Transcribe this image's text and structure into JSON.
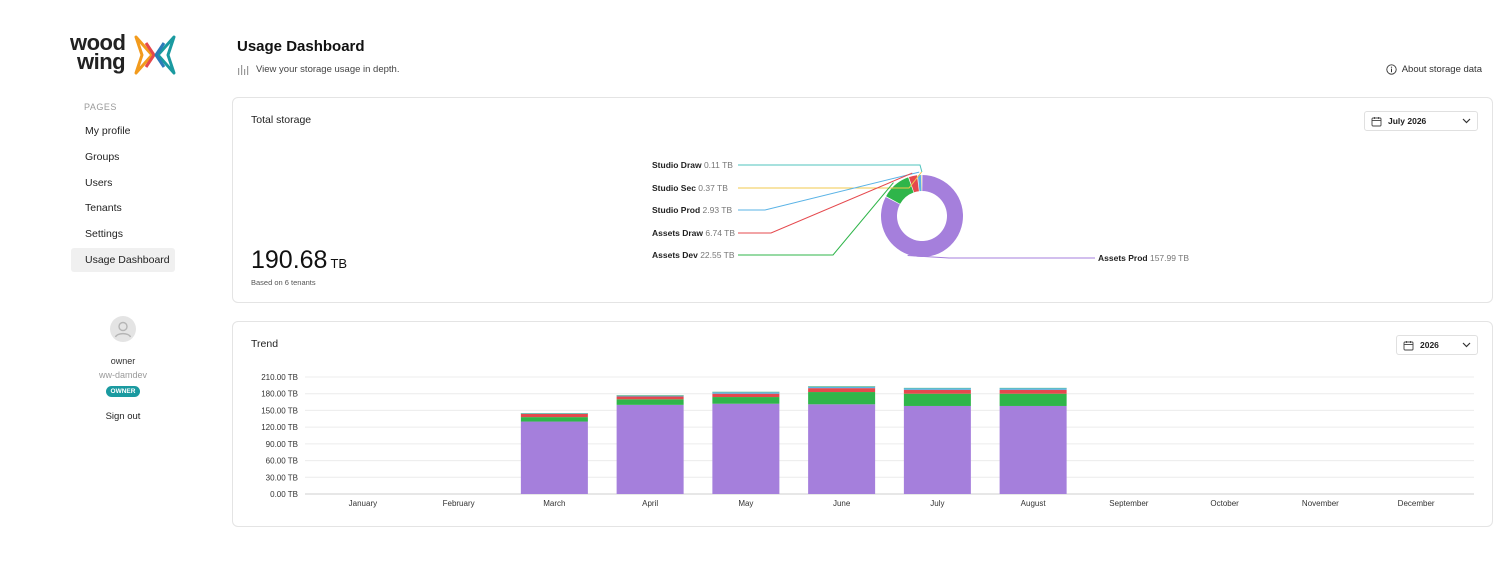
{
  "brand": {
    "line1": "wood",
    "line2": "wing"
  },
  "sidebar": {
    "section_label": "PAGES",
    "items": [
      {
        "label": "My profile"
      },
      {
        "label": "Groups"
      },
      {
        "label": "Users"
      },
      {
        "label": "Tenants"
      },
      {
        "label": "Settings"
      },
      {
        "label": "Usage Dashboard",
        "active": true
      }
    ],
    "user": {
      "name": "owner",
      "tenant": "ww-damdev",
      "role_badge": "OWNER",
      "sign_out": "Sign out"
    }
  },
  "header": {
    "title": "Usage Dashboard",
    "subtitle": "View your storage usage in depth.",
    "about_link": "About storage data"
  },
  "total_storage": {
    "title": "Total storage",
    "month_select": "July 2026",
    "total_value": "190.68",
    "total_unit": "TB",
    "note": "Based on 6 tenants"
  },
  "trend": {
    "title": "Trend",
    "year_select": "2026"
  },
  "colors": {
    "assets_prod": "#a57fdc",
    "assets_dev": "#2fb54a",
    "assets_draw": "#e5484d",
    "studio_prod": "#5ab3e6",
    "studio_sec": "#f2c94c",
    "studio_draw": "#4fc3bd"
  },
  "chart_data": [
    {
      "type": "pie",
      "variant": "donut",
      "slices": [
        {
          "label": "Studio Draw",
          "value": 0.11,
          "value_text": "0.11",
          "unit": "TB",
          "color": "#4fc3bd"
        },
        {
          "label": "Studio Sec",
          "value": 0.37,
          "value_text": "0.37",
          "unit": "TB",
          "color": "#f2c94c"
        },
        {
          "label": "Studio Prod",
          "value": 2.93,
          "value_text": "2.93",
          "unit": "TB",
          "color": "#5ab3e6"
        },
        {
          "label": "Assets Draw",
          "value": 6.74,
          "value_text": "6.74",
          "unit": "TB",
          "color": "#e5484d"
        },
        {
          "label": "Assets Dev",
          "value": 22.55,
          "value_text": "22.55",
          "unit": "TB",
          "color": "#2fb54a"
        },
        {
          "label": "Assets Prod",
          "value": 157.99,
          "value_text": "157.99",
          "unit": "TB",
          "color": "#a57fdc"
        }
      ]
    },
    {
      "type": "bar",
      "stacked": true,
      "categories": [
        "January",
        "February",
        "March",
        "April",
        "May",
        "June",
        "July",
        "August",
        "September",
        "October",
        "November",
        "December"
      ],
      "y_ticks": [
        "0.00 TB",
        "30.00 TB",
        "60.00 TB",
        "90.00 TB",
        "120.00 TB",
        "150.00 TB",
        "180.00 TB",
        "210.00 TB"
      ],
      "ylim": [
        0,
        210
      ],
      "grid": true,
      "series": [
        {
          "name": "Assets Prod",
          "color": "#a57fdc",
          "values": [
            0,
            0,
            130,
            160,
            162,
            161,
            158,
            158,
            0,
            0,
            0,
            0
          ]
        },
        {
          "name": "Assets Dev",
          "color": "#2fb54a",
          "values": [
            0,
            0,
            8,
            10,
            12,
            22,
            22,
            22,
            0,
            0,
            0,
            0
          ]
        },
        {
          "name": "Assets Draw",
          "color": "#e5484d",
          "values": [
            0,
            0,
            6,
            5,
            6,
            7,
            7,
            7,
            0,
            0,
            0,
            0
          ]
        },
        {
          "name": "Studio Prod",
          "color": "#5ab3e6",
          "values": [
            0,
            0,
            1,
            2,
            3,
            3,
            3,
            3,
            0,
            0,
            0,
            0
          ]
        },
        {
          "name": "Studio Sec",
          "color": "#f2c94c",
          "values": [
            0,
            0,
            0.3,
            0.3,
            0.4,
            0.4,
            0.4,
            0.4,
            0,
            0,
            0,
            0
          ]
        },
        {
          "name": "Studio Draw",
          "color": "#4fc3bd",
          "values": [
            0,
            0,
            0.1,
            0.1,
            0.1,
            0.1,
            0.1,
            0.1,
            0,
            0,
            0,
            0
          ]
        }
      ]
    }
  ]
}
